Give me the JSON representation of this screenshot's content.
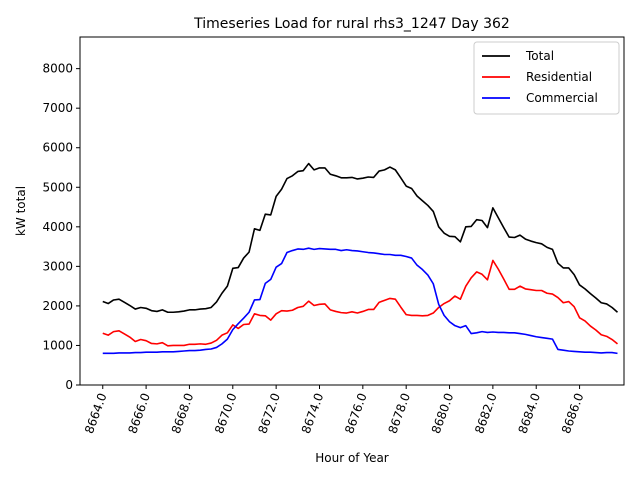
{
  "chart_data": {
    "type": "line",
    "title": "Timeseries Load for rural rhs3_1247  Day 362",
    "xlabel": "Hour of Year",
    "ylabel": "kW total",
    "xlim": [
      8662.95,
      8688.05
    ],
    "ylim": [
      0,
      8800
    ],
    "x_ticks": [
      8664,
      8666,
      8668,
      8670,
      8672,
      8674,
      8676,
      8678,
      8680,
      8682,
      8684,
      8686
    ],
    "x_tick_labels": [
      "8664.0",
      "8666.0",
      "8668.0",
      "8670.0",
      "8672.0",
      "8674.0",
      "8676.0",
      "8678.0",
      "8680.0",
      "8682.0",
      "8684.0",
      "8686.0"
    ],
    "y_ticks": [
      0,
      1000,
      2000,
      3000,
      4000,
      5000,
      6000,
      7000,
      8000
    ],
    "y_tick_labels": [
      "0",
      "1000",
      "2000",
      "3000",
      "4000",
      "5000",
      "6000",
      "7000",
      "8000"
    ],
    "grid": false,
    "legend_position": "top-right",
    "x": [
      8664.0,
      8664.25,
      8664.5,
      8664.75,
      8665.0,
      8665.25,
      8665.5,
      8665.75,
      8666.0,
      8666.25,
      8666.5,
      8666.75,
      8667.0,
      8667.25,
      8667.5,
      8667.75,
      8668.0,
      8668.25,
      8668.5,
      8668.75,
      8669.0,
      8669.25,
      8669.5,
      8669.75,
      8670.0,
      8670.25,
      8670.5,
      8670.75,
      8671.0,
      8671.25,
      8671.5,
      8671.75,
      8672.0,
      8672.25,
      8672.5,
      8672.75,
      8673.0,
      8673.25,
      8673.5,
      8673.75,
      8674.0,
      8674.25,
      8674.5,
      8674.75,
      8675.0,
      8675.25,
      8675.5,
      8675.75,
      8676.0,
      8676.25,
      8676.5,
      8676.75,
      8677.0,
      8677.25,
      8677.5,
      8677.75,
      8678.0,
      8678.25,
      8678.5,
      8678.75,
      8679.0,
      8679.25,
      8679.5,
      8679.75,
      8680.0,
      8680.25,
      8680.5,
      8680.75,
      8681.0,
      8681.25,
      8681.5,
      8681.75,
      8682.0,
      8682.25,
      8682.5,
      8682.75,
      8683.0,
      8683.25,
      8683.5,
      8683.75,
      8684.0,
      8684.25,
      8684.5,
      8684.75,
      8685.0,
      8685.25,
      8685.5,
      8685.75,
      8686.0,
      8686.25,
      8686.5,
      8686.75,
      8687.0,
      8687.25,
      8687.5,
      8687.75
    ],
    "series": [
      {
        "name": "Total",
        "color": "#000000",
        "values": [
          2110,
          2060,
          2150,
          2170,
          2090,
          2010,
          1920,
          1960,
          1940,
          1880,
          1860,
          1900,
          1840,
          1840,
          1850,
          1870,
          1900,
          1900,
          1920,
          1930,
          1960,
          2100,
          2320,
          2500,
          2950,
          2970,
          3210,
          3360,
          3950,
          3910,
          4320,
          4300,
          4770,
          4950,
          5220,
          5290,
          5400,
          5420,
          5600,
          5440,
          5490,
          5490,
          5330,
          5290,
          5240,
          5240,
          5250,
          5210,
          5230,
          5260,
          5250,
          5410,
          5440,
          5510,
          5440,
          5240,
          5030,
          4970,
          4780,
          4660,
          4540,
          4390,
          4000,
          3840,
          3760,
          3750,
          3620,
          4000,
          4010,
          4180,
          4160,
          3980,
          4480,
          4230,
          3980,
          3740,
          3730,
          3790,
          3690,
          3640,
          3600,
          3570,
          3480,
          3430,
          3080,
          2960,
          2960,
          2790,
          2530,
          2430,
          2310,
          2200,
          2080,
          2050,
          1960,
          1840
        ]
      },
      {
        "name": "Residential",
        "color": "#ff0000",
        "values": [
          1310,
          1260,
          1350,
          1370,
          1290,
          1210,
          1100,
          1150,
          1120,
          1050,
          1040,
          1070,
          990,
          1000,
          1000,
          1000,
          1030,
          1030,
          1040,
          1030,
          1060,
          1130,
          1260,
          1320,
          1520,
          1430,
          1530,
          1540,
          1800,
          1760,
          1750,
          1640,
          1800,
          1880,
          1870,
          1890,
          1960,
          1990,
          2120,
          2010,
          2040,
          2050,
          1900,
          1860,
          1830,
          1820,
          1850,
          1820,
          1860,
          1910,
          1910,
          2090,
          2140,
          2190,
          2170,
          1970,
          1780,
          1760,
          1760,
          1750,
          1760,
          1820,
          1960,
          2060,
          2130,
          2250,
          2170,
          2500,
          2710,
          2860,
          2800,
          2660,
          3150,
          2930,
          2680,
          2420,
          2420,
          2500,
          2430,
          2410,
          2390,
          2390,
          2320,
          2300,
          2210,
          2080,
          2110,
          1980,
          1700,
          1620,
          1490,
          1390,
          1270,
          1230,
          1150,
          1040
        ]
      },
      {
        "name": "Commercial",
        "color": "#0000ff",
        "values": [
          800,
          800,
          800,
          810,
          810,
          810,
          820,
          820,
          830,
          830,
          830,
          840,
          840,
          840,
          850,
          860,
          870,
          870,
          880,
          900,
          910,
          950,
          1040,
          1160,
          1400,
          1550,
          1690,
          1840,
          2150,
          2160,
          2570,
          2670,
          2980,
          3070,
          3350,
          3400,
          3440,
          3430,
          3460,
          3430,
          3450,
          3440,
          3430,
          3430,
          3400,
          3420,
          3400,
          3390,
          3370,
          3350,
          3340,
          3320,
          3300,
          3300,
          3280,
          3280,
          3250,
          3210,
          3030,
          2920,
          2780,
          2560,
          2040,
          1760,
          1600,
          1500,
          1450,
          1500,
          1300,
          1320,
          1350,
          1330,
          1340,
          1330,
          1330,
          1320,
          1320,
          1300,
          1280,
          1250,
          1220,
          1200,
          1180,
          1160,
          900,
          880,
          860,
          850,
          840,
          830,
          830,
          820,
          810,
          820,
          820,
          800
        ]
      }
    ]
  }
}
